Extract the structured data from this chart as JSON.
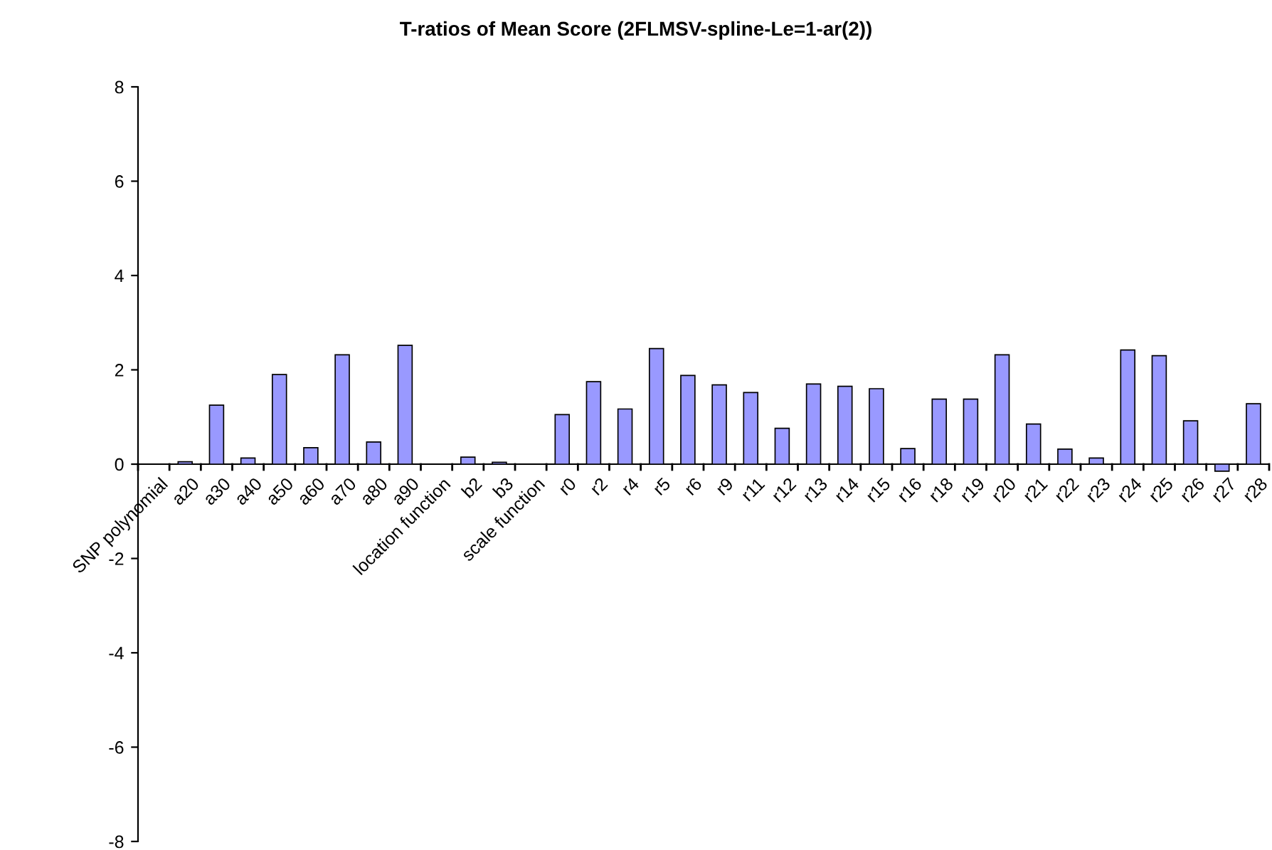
{
  "chart_data": {
    "type": "bar",
    "title": "T-ratios of Mean Score (2FLMSV-spline-Le=1-ar(2))",
    "categories": [
      "SNP polynomial",
      "a20",
      "a30",
      "a40",
      "a50",
      "a60",
      "a70",
      "a80",
      "a90",
      "location function",
      "b2",
      "b3",
      "scale function",
      "r0",
      "r2",
      "r4",
      "r5",
      "r6",
      "r9",
      "r11",
      "r12",
      "r13",
      "r14",
      "r15",
      "r16",
      "r18",
      "r19",
      "r20",
      "r21",
      "r22",
      "r23",
      "r24",
      "r25",
      "r26",
      "r27",
      "r28"
    ],
    "values": [
      null,
      0.05,
      1.25,
      0.13,
      1.9,
      0.35,
      2.32,
      0.47,
      2.52,
      null,
      0.15,
      0.04,
      null,
      1.05,
      1.75,
      1.17,
      2.45,
      1.88,
      1.68,
      1.52,
      0.76,
      1.7,
      1.65,
      1.6,
      0.33,
      1.38,
      1.38,
      2.32,
      0.85,
      0.32,
      0.13,
      2.42,
      2.3,
      0.92,
      -0.15,
      1.28
    ],
    "color": "#9999ff",
    "ylim": [
      -8,
      8
    ],
    "yticks": [
      -8,
      -6,
      -4,
      -2,
      0,
      2,
      4,
      6,
      8
    ],
    "grid": false,
    "legend": false
  }
}
